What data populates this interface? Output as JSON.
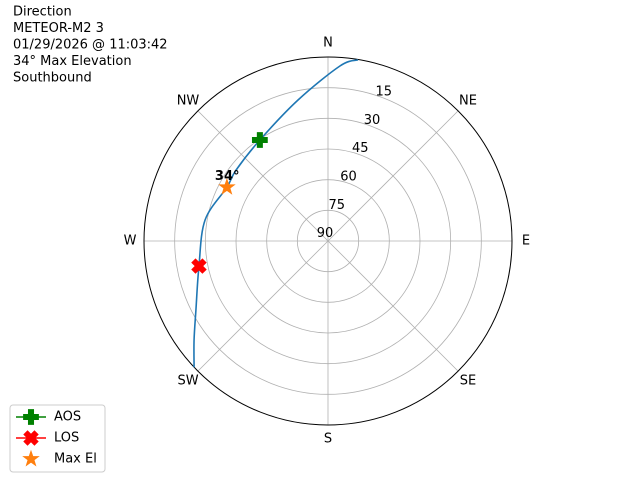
{
  "chart_data": {
    "type": "polar",
    "title_lines": [
      "Direction",
      "METEOR-M2 3",
      "01/29/2026 @ 11:03:42",
      "34° Max Elevation",
      "Southbound"
    ],
    "rlim": [
      90,
      0
    ],
    "rticks": [
      15,
      30,
      45,
      60,
      75,
      90
    ],
    "theta_ticks": [
      {
        "value": 0,
        "label": "N"
      },
      {
        "value": 45,
        "label": "NE"
      },
      {
        "value": 90,
        "label": "E"
      },
      {
        "value": 135,
        "label": "SE"
      },
      {
        "value": 180,
        "label": "S"
      },
      {
        "value": 225,
        "label": "SW"
      },
      {
        "value": 270,
        "label": "W"
      },
      {
        "value": 315,
        "label": "NW"
      }
    ],
    "grid": true,
    "track": {
      "color": "#1f77b4",
      "azimuth": [
        9.4,
        3.9,
        348,
        326,
        307.7,
        298,
        279.7,
        259,
        242.4,
        233.5,
        226.7
      ],
      "elevation": [
        0.2,
        4.2,
        19.5,
        30.4,
        33.2,
        34,
        29,
        25.7,
        17.1,
        8.5,
        0
      ]
    },
    "markers": [
      {
        "name": "AOS",
        "color": "#008000",
        "marker": "plus",
        "azimuth": 326,
        "elevation": 30.4
      },
      {
        "name": "LOS",
        "color": "#ff0000",
        "marker": "x",
        "azimuth": 259,
        "elevation": 25.7
      },
      {
        "name": "Max El",
        "color": "#ff7f0e",
        "marker": "star",
        "azimuth": 298,
        "elevation": 34,
        "value_label": "34°"
      }
    ],
    "legend": "lower left"
  }
}
